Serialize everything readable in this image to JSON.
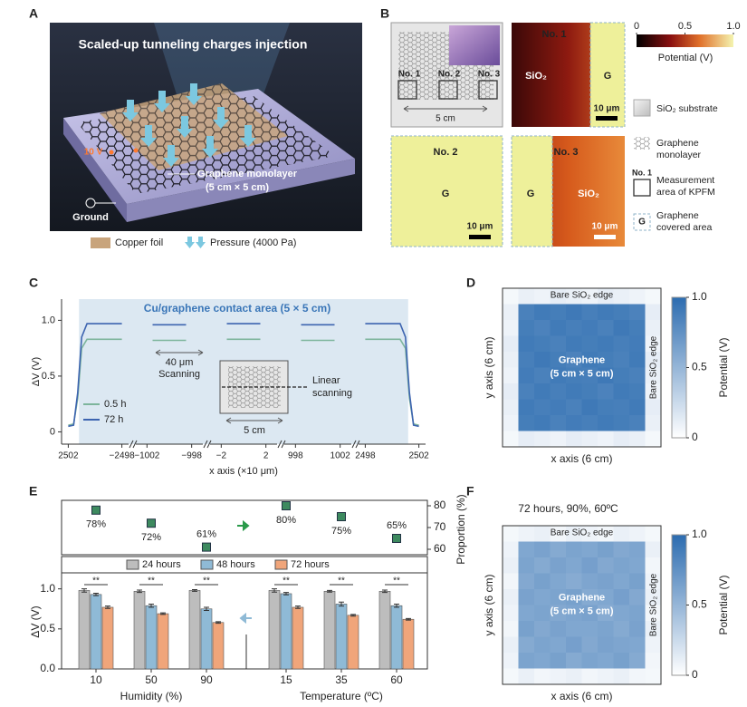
{
  "panel_labels": [
    "A",
    "B",
    "C",
    "D",
    "E",
    "F"
  ],
  "panel_a": {
    "title": "Scaled-up tunneling charges injection",
    "voltage": "10 V",
    "graphene_label": [
      "Graphene monolayer",
      "(5 cm × 5 cm)"
    ],
    "ground": "Ground",
    "legend": [
      "Copper foil",
      "Pressure (4000 Pa)"
    ]
  },
  "panel_b": {
    "schematic_areas": [
      "No. 1",
      "No. 2",
      "No. 3"
    ],
    "schematic_scale": "5 cm",
    "maps": [
      {
        "title": "No. 1",
        "regions": [
          "SiO₂",
          "G"
        ],
        "scale": "10 μm"
      },
      {
        "title": "No. 2",
        "regions": [
          "G"
        ],
        "scale": "10 μm"
      },
      {
        "title": "No. 3",
        "regions": [
          "G",
          "SiO₂"
        ],
        "scale": "10 μm"
      }
    ],
    "colorbar": {
      "zlim": [
        0,
        1
      ],
      "ticks": [
        0,
        0.5,
        {
          "value": 1,
          "label": "1.0"
        }
      ],
      "label": "Potential (V)"
    },
    "legend": [
      {
        "text": [
          "SiO₂ substrate"
        ]
      },
      {
        "text": [
          "Graphene",
          "monolayer"
        ]
      },
      {
        "symbol": "No. 1",
        "text": [
          "Measurement",
          "area of KPFM"
        ]
      },
      {
        "symbol": "G",
        "text": [
          "Graphene",
          "covered area"
        ]
      }
    ]
  },
  "chart_data": [
    {
      "type": "line",
      "annotation": "Cu/graphene contact area (5 × 5 cm)",
      "xlabel": "x axis (×10 μm)",
      "ylabel": "ΔV (V)",
      "x_segments": [
        [
          -2502.5,
          -2497.5
        ],
        [
          -1003,
          -997
        ],
        [
          -3,
          3
        ],
        [
          997,
          1003
        ],
        [
          2497.5,
          2502.5
        ]
      ],
      "xticks": [
        {
          "value": -2502,
          "label": "2502"
        },
        {
          "value": -2498,
          "label": "−2498"
        },
        {
          "value": -1002,
          "label": "−1002"
        },
        {
          "value": -998,
          "label": "−998"
        },
        {
          "value": -2,
          "label": "−2"
        },
        2,
        998,
        1002,
        2498,
        2502
      ],
      "ylim": [
        -0.11,
        1.19
      ],
      "yticks": [
        0,
        0.5,
        {
          "value": 1,
          "label": "1.0"
        }
      ],
      "contact_area": [
        -2501.2,
        2501.2
      ],
      "scan_annotation": [
        "40 μm",
        "Scanning"
      ],
      "inset_annotation": [
        "Linear",
        "scanning",
        "5 cm"
      ],
      "x": [
        -2502,
        -2501.6,
        -2501.3,
        -2501,
        -2500.6,
        -2500,
        -2499,
        -2498,
        -1001.5,
        -1000,
        -998.5,
        -1.5,
        0,
        1.5,
        998.5,
        1000,
        1001.5,
        2498,
        2499,
        2500,
        2500.6,
        2501,
        2501.3,
        2501.6,
        2502
      ],
      "series": [
        {
          "name": "0.5 h",
          "color": "#7db59c",
          "values": [
            0.06,
            0.07,
            0.3,
            0.75,
            0.83,
            0.83,
            0.83,
            0.83,
            0.82,
            0.82,
            0.82,
            0.83,
            0.83,
            0.83,
            0.82,
            0.82,
            0.82,
            0.83,
            0.83,
            0.83,
            0.83,
            0.75,
            0.3,
            0.07,
            0.06
          ]
        },
        {
          "name": "72 h",
          "color": "#3d64b0",
          "values": [
            0.05,
            0.06,
            0.35,
            0.85,
            0.97,
            0.97,
            0.97,
            0.97,
            0.96,
            0.96,
            0.96,
            0.97,
            0.97,
            0.97,
            0.96,
            0.96,
            0.96,
            0.97,
            0.97,
            0.97,
            0.97,
            0.85,
            0.35,
            0.06,
            0.05
          ]
        }
      ]
    },
    {
      "type": "heatmap",
      "top_label": "Bare SiO₂ edge",
      "right_label": "Bare SiO₂ edge",
      "center_label": [
        "Graphene",
        "(5 cm × 5 cm)"
      ],
      "xlabel": "x axis (6 cm)",
      "ylabel": "y axis (6 cm)",
      "zlim": [
        0,
        1
      ],
      "colorbar": {
        "ticks": [
          0,
          0.5,
          {
            "value": 1,
            "label": "1.0"
          }
        ],
        "label": "Potential (V)"
      },
      "values": [
        [
          0.05,
          0.1,
          0.08,
          0.12,
          0.1,
          0.08,
          0.12,
          0.1,
          0.08,
          0.05
        ],
        [
          0.1,
          0.86,
          0.9,
          0.88,
          0.91,
          0.87,
          0.9,
          0.88,
          0.85,
          0.12
        ],
        [
          0.08,
          0.88,
          0.85,
          0.9,
          0.87,
          0.89,
          0.86,
          0.91,
          0.88,
          0.1
        ],
        [
          0.12,
          0.9,
          0.88,
          0.86,
          0.9,
          0.88,
          0.9,
          0.87,
          0.89,
          0.08
        ],
        [
          0.1,
          0.87,
          0.91,
          0.88,
          0.85,
          0.9,
          0.88,
          0.86,
          0.9,
          0.12
        ],
        [
          0.08,
          0.89,
          0.86,
          0.9,
          0.88,
          0.87,
          0.91,
          0.88,
          0.86,
          0.1
        ],
        [
          0.12,
          0.86,
          0.9,
          0.87,
          0.9,
          0.88,
          0.85,
          0.9,
          0.88,
          0.08
        ],
        [
          0.1,
          0.9,
          0.87,
          0.89,
          0.86,
          0.91,
          0.88,
          0.87,
          0.9,
          0.12
        ],
        [
          0.08,
          0.88,
          0.9,
          0.86,
          0.89,
          0.87,
          0.9,
          0.88,
          0.86,
          0.1
        ],
        [
          0.05,
          0.12,
          0.1,
          0.08,
          0.12,
          0.1,
          0.08,
          0.12,
          0.1,
          0.05
        ]
      ]
    },
    {
      "type": "heatmap",
      "title": "72 hours, 90%, 60ºC",
      "top_label": "Bare SiO₂ edge",
      "right_label": "Bare SiO₂ edge",
      "center_label": [
        "Graphene",
        "(5 cm × 5 cm)"
      ],
      "xlabel": "x axis (6 cm)",
      "ylabel": "y axis (6 cm)",
      "zlim": [
        0,
        1
      ],
      "colorbar": {
        "ticks": [
          0,
          0.5,
          {
            "value": 1,
            "label": "1.0"
          }
        ],
        "label": "Potential (V)"
      },
      "values": [
        [
          0.05,
          0.08,
          0.1,
          0.06,
          0.1,
          0.08,
          0.06,
          0.1,
          0.08,
          0.05
        ],
        [
          0.08,
          0.6,
          0.63,
          0.58,
          0.62,
          0.6,
          0.64,
          0.59,
          0.61,
          0.1
        ],
        [
          0.1,
          0.62,
          0.58,
          0.63,
          0.6,
          0.65,
          0.59,
          0.62,
          0.6,
          0.06
        ],
        [
          0.06,
          0.59,
          0.64,
          0.6,
          0.57,
          0.61,
          0.63,
          0.6,
          0.64,
          0.08
        ],
        [
          0.1,
          0.63,
          0.6,
          0.62,
          0.64,
          0.58,
          0.6,
          0.65,
          0.59,
          0.1
        ],
        [
          0.08,
          0.6,
          0.62,
          0.59,
          0.61,
          0.63,
          0.57,
          0.6,
          0.62,
          0.06
        ],
        [
          0.06,
          0.64,
          0.59,
          0.63,
          0.6,
          0.6,
          0.62,
          0.58,
          0.63,
          0.1
        ],
        [
          0.1,
          0.58,
          0.62,
          0.6,
          0.65,
          0.59,
          0.63,
          0.61,
          0.6,
          0.08
        ],
        [
          0.08,
          0.62,
          0.6,
          0.64,
          0.58,
          0.62,
          0.6,
          0.64,
          0.58,
          0.06
        ],
        [
          0.05,
          0.1,
          0.06,
          0.08,
          0.1,
          0.06,
          0.08,
          0.1,
          0.06,
          0.05
        ]
      ]
    },
    {
      "type": "scatter",
      "values": [
        78,
        72,
        61,
        80,
        75,
        65
      ],
      "value_labels": [
        "78%",
        "72%",
        "61%",
        "80%",
        "75%",
        "65%"
      ],
      "color": "#3d8a5f",
      "y2lim": [
        57.5,
        82.5
      ],
      "y2ticks": [
        60,
        70,
        80
      ],
      "y2label": "Proportion (%)"
    },
    {
      "type": "bar",
      "categories": [
        "10",
        "50",
        "90",
        "15",
        "35",
        "60"
      ],
      "group_labels": [
        "Humidity (%)",
        "Temperature (ºC)"
      ],
      "ylabel": "ΔV (V)",
      "ylim": [
        0,
        1.2
      ],
      "yticks": [
        {
          "value": 0,
          "label": "0.0"
        },
        0.5,
        {
          "value": 1,
          "label": "1.0"
        }
      ],
      "significance_labels": [
        "**",
        "**",
        "**",
        "**",
        "**",
        "**"
      ],
      "series": [
        {
          "name": "24 hours",
          "color": "#bdbdbd",
          "values": [
            0.98,
            0.97,
            0.98,
            0.98,
            0.97,
            0.97
          ],
          "errors": [
            0.02,
            0.015,
            0.01,
            0.02,
            0.01,
            0.015
          ]
        },
        {
          "name": "48 hours",
          "color": "#8fbad6",
          "values": [
            0.93,
            0.79,
            0.75,
            0.94,
            0.81,
            0.79
          ],
          "errors": [
            0.015,
            0.02,
            0.02,
            0.015,
            0.025,
            0.02
          ]
        },
        {
          "name": "72 hours",
          "color": "#f0a57a",
          "values": [
            0.77,
            0.69,
            0.58,
            0.77,
            0.67,
            0.62
          ],
          "errors": [
            0.015,
            0.01,
            0.01,
            0.015,
            0.01,
            0.01
          ]
        }
      ]
    }
  ]
}
